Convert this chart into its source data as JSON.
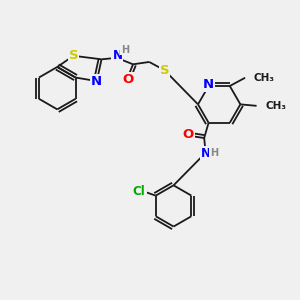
{
  "bg_color": "#f0f0f0",
  "bond_color": "#1a1a1a",
  "atom_colors": {
    "S": "#cccc00",
    "N": "#0000ff",
    "O": "#ff0000",
    "Cl": "#00aa00",
    "H": "#888888",
    "C": "#1a1a1a"
  },
  "font_size": 8.5,
  "bond_lw": 1.3
}
